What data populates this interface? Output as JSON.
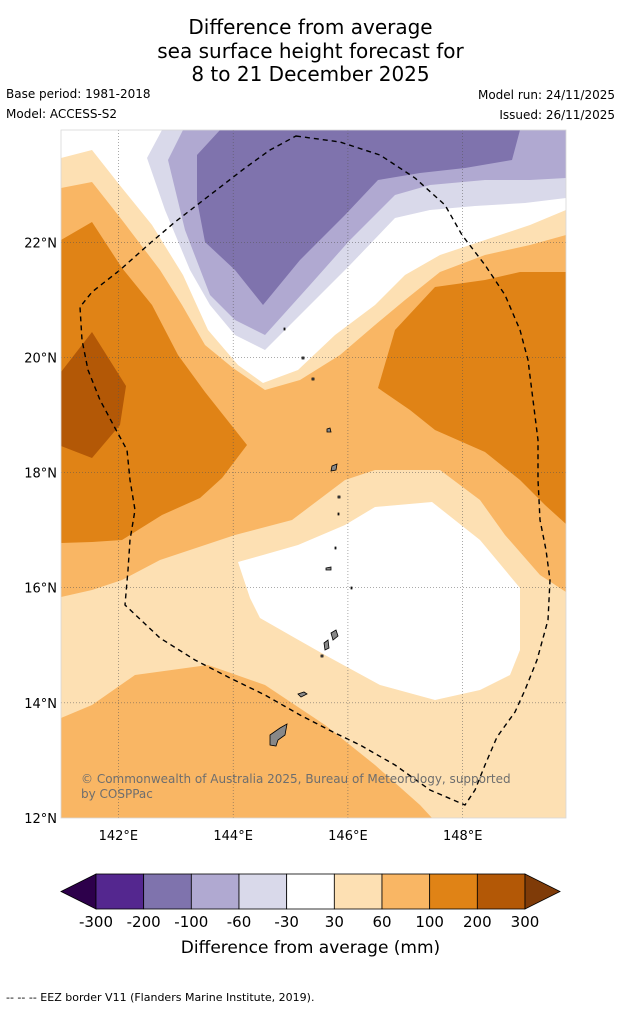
{
  "title": {
    "line1": "Difference from average",
    "line2": "sea surface height forecast for",
    "line3": "8 to 21 December 2025"
  },
  "meta": {
    "base_period": "Base period: 1981-2018",
    "model": "Model: ACCESS-S2",
    "model_run": "Model run: 24/11/2025",
    "issued": "Issued: 26/11/2025"
  },
  "axes": {
    "lon_labels": [
      "142°E",
      "144°E",
      "146°E",
      "148°E"
    ],
    "lat_labels": [
      "22°N",
      "20°N",
      "18°N",
      "16°N",
      "14°N",
      "12°N"
    ],
    "lon_values": [
      142,
      144,
      146,
      148
    ],
    "lat_values": [
      22,
      20,
      18,
      16,
      14,
      12
    ],
    "lon_range": [
      141,
      149.8
    ],
    "lat_range": [
      12,
      23.95
    ]
  },
  "copyright": "© Commonwealth of Australia 2025, Bureau of Meteorology, supported by COSPPac",
  "colorbar": {
    "title": "Difference from average (mm)",
    "tick_labels": [
      "-300",
      "-200",
      "-100",
      "-60",
      "-30",
      "30",
      "60",
      "100",
      "200",
      "300"
    ],
    "bins": [
      {
        "range": "-300 to -200",
        "color": "#54278f"
      },
      {
        "range": "-200 to -100",
        "color": "#7f73ad"
      },
      {
        "range": "-100 to -60",
        "color": "#b0a9d1"
      },
      {
        "range": "-60 to -30",
        "color": "#d9d9ea"
      },
      {
        "range": "-30 to 30",
        "color": "#ffffff"
      },
      {
        "range": "30 to 60",
        "color": "#fde0b3"
      },
      {
        "range": "60 to 100",
        "color": "#f9b664"
      },
      {
        "range": "100 to 200",
        "color": "#e08316"
      },
      {
        "range": "200 to 300",
        "color": "#b35806"
      }
    ],
    "under_color": "#2d004b",
    "over_color": "#7f3b08"
  },
  "legend_note": "--  --  -- EEZ border V11 (Flanders Marine Institute, 2019)."
}
